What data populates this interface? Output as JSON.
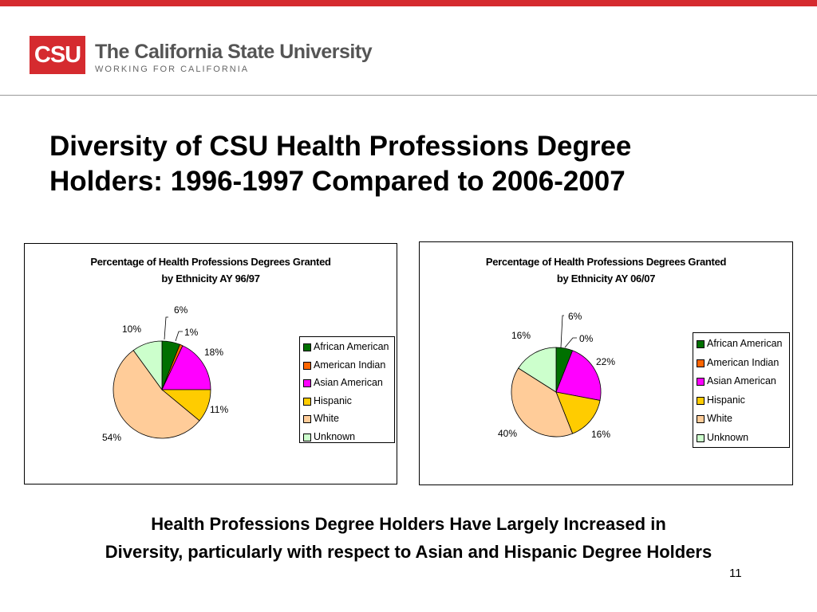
{
  "header": {
    "logo_abbr": "CSU",
    "logo_name": "The California State University",
    "logo_tagline": "WORKING FOR CALIFORNIA",
    "accent_color": "#d52b2f"
  },
  "slide": {
    "title_line1": "Diversity of CSU Health Professions Degree",
    "title_line2": "Holders:  1996-1997 Compared to 2006-2007",
    "summary_line1": "Health Professions Degree Holders Have Largely Increased in",
    "summary_line2": "Diversity, particularly with respect to Asian and Hispanic Degree Holders",
    "page_number": "11"
  },
  "legend_items": [
    {
      "label": "African American",
      "color": "#007000"
    },
    {
      "label": "American Indian",
      "color": "#ff6600"
    },
    {
      "label": "Asian American",
      "color": "#ff00ff"
    },
    {
      "label": "Hispanic",
      "color": "#ffcc00"
    },
    {
      "label": "White",
      "color": "#ffcc99"
    },
    {
      "label": "Unknown",
      "color": "#ccffcc"
    }
  ],
  "chart_data": [
    {
      "type": "pie",
      "title_line1": "Percentage of Health Professions Degrees Granted",
      "title_line2": "by Ethnicity AY 96/97",
      "categories": [
        "African American",
        "American Indian",
        "Asian American",
        "Hispanic",
        "White",
        "Unknown"
      ],
      "values": [
        6,
        1,
        18,
        11,
        54,
        10
      ],
      "labels": [
        "6%",
        "1%",
        "18%",
        "11%",
        "54%",
        "10%"
      ],
      "legend_position": "right"
    },
    {
      "type": "pie",
      "title_line1": "Percentage of Health Professions Degrees Granted",
      "title_line2": "by Ethnicity AY 06/07",
      "categories": [
        "African American",
        "American Indian",
        "Asian American",
        "Hispanic",
        "White",
        "Unknown"
      ],
      "values": [
        6,
        0,
        22,
        16,
        40,
        16
      ],
      "labels": [
        "6%",
        "0%",
        "22%",
        "16%",
        "40%",
        "16%"
      ],
      "legend_position": "right"
    }
  ]
}
